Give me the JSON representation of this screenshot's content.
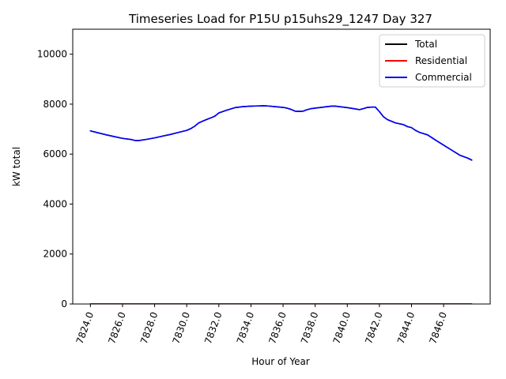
{
  "chart_data": {
    "type": "line",
    "title": "Timeseries Load for P15U p15uhs29_1247  Day 327",
    "xlabel": "Hour of Year",
    "ylabel": "kW total",
    "xlim": [
      7822.9,
      7848.9
    ],
    "ylim": [
      0,
      11000
    ],
    "x_ticks": [
      7824.0,
      7826.0,
      7828.0,
      7830.0,
      7832.0,
      7834.0,
      7836.0,
      7838.0,
      7840.0,
      7842.0,
      7844.0,
      7846.0
    ],
    "x_tick_labels": [
      "7824.0",
      "7826.0",
      "7828.0",
      "7830.0",
      "7832.0",
      "7834.0",
      "7836.0",
      "7838.0",
      "7840.0",
      "7842.0",
      "7844.0",
      "7846.0"
    ],
    "y_ticks": [
      0,
      2000,
      4000,
      6000,
      8000,
      10000
    ],
    "y_tick_labels": [
      "0",
      "2000",
      "4000",
      "6000",
      "8000",
      "10000"
    ],
    "legend_position": "top-right",
    "x": [
      7824.0,
      7824.5,
      7825.0,
      7825.5,
      7826.0,
      7826.5,
      7826.75,
      7827.0,
      7827.5,
      7828.0,
      7828.5,
      7829.0,
      7829.5,
      7829.75,
      7830.0,
      7830.25,
      7830.5,
      7830.75,
      7831.0,
      7831.25,
      7831.5,
      7831.75,
      7832.0,
      7832.5,
      7833.0,
      7833.5,
      7834.0,
      7834.5,
      7834.75,
      7835.0,
      7835.5,
      7836.0,
      7836.25,
      7836.5,
      7836.75,
      7837.0,
      7837.25,
      7837.5,
      7837.75,
      7838.0,
      7838.5,
      7839.0,
      7839.25,
      7839.5,
      7840.0,
      7840.5,
      7840.75,
      7841.0,
      7841.25,
      7841.5,
      7841.75,
      7842.0,
      7842.25,
      7842.5,
      7843.0,
      7843.5,
      7843.75,
      7844.0,
      7844.25,
      7844.5,
      7844.75,
      7845.0,
      7845.5,
      7846.0,
      7846.5,
      7847.0,
      7847.5,
      7847.75
    ],
    "series": [
      {
        "name": "Total",
        "color": "#000000",
        "values": [
          6930,
          6850,
          6770,
          6700,
          6630,
          6590,
          6550,
          6540,
          6590,
          6650,
          6720,
          6790,
          6870,
          6910,
          6950,
          7020,
          7120,
          7250,
          7320,
          7390,
          7450,
          7520,
          7650,
          7760,
          7860,
          7900,
          7920,
          7930,
          7935,
          7930,
          7900,
          7870,
          7840,
          7790,
          7720,
          7710,
          7720,
          7780,
          7820,
          7840,
          7880,
          7920,
          7920,
          7900,
          7860,
          7810,
          7780,
          7820,
          7870,
          7880,
          7880,
          7700,
          7500,
          7380,
          7250,
          7180,
          7100,
          7060,
          6950,
          6870,
          6820,
          6770,
          6560,
          6360,
          6160,
          5960,
          5840,
          5760
        ]
      },
      {
        "name": "Residential",
        "color": "#ff0000",
        "values": [
          8,
          8,
          8,
          8,
          8,
          8,
          8,
          8,
          8,
          8,
          8,
          8,
          8,
          8,
          8,
          8,
          8,
          8,
          8,
          8,
          8,
          8,
          8,
          8,
          8,
          8,
          8,
          8,
          8,
          8,
          8,
          8,
          8,
          8,
          8,
          8,
          8,
          8,
          8,
          8,
          8,
          8,
          8,
          8,
          8,
          8,
          8,
          8,
          8,
          8,
          8,
          8,
          8,
          8,
          8,
          8,
          8,
          8,
          8,
          8,
          8,
          8,
          8,
          8,
          8,
          8,
          8,
          8
        ]
      },
      {
        "name": "Commercial",
        "color": "#0000ff",
        "values": [
          6930,
          6850,
          6770,
          6700,
          6630,
          6590,
          6550,
          6540,
          6590,
          6650,
          6720,
          6790,
          6870,
          6910,
          6950,
          7020,
          7120,
          7250,
          7320,
          7390,
          7450,
          7520,
          7650,
          7760,
          7860,
          7900,
          7920,
          7930,
          7935,
          7930,
          7900,
          7870,
          7840,
          7790,
          7720,
          7710,
          7720,
          7780,
          7820,
          7840,
          7880,
          7920,
          7920,
          7900,
          7860,
          7810,
          7780,
          7820,
          7870,
          7880,
          7880,
          7700,
          7500,
          7380,
          7250,
          7180,
          7100,
          7060,
          6950,
          6870,
          6820,
          6770,
          6560,
          6360,
          6160,
          5960,
          5840,
          5760
        ]
      }
    ]
  }
}
